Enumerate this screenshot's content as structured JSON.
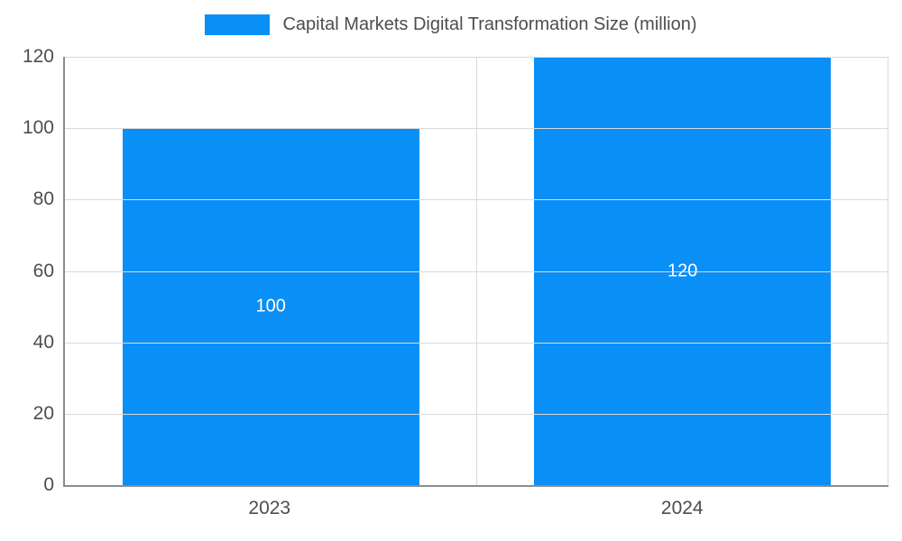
{
  "legend": {
    "title": "Capital Markets Digital Transformation Size (million)"
  },
  "chart_data": {
    "type": "bar",
    "title": "Capital Markets Digital Transformation Size (million)",
    "categories": [
      "2023",
      "2024"
    ],
    "values": [
      100,
      120
    ],
    "xlabel": "",
    "ylabel": "",
    "ylim": [
      0,
      120
    ],
    "yticks": [
      0,
      20,
      40,
      60,
      80,
      100,
      120
    ],
    "bar_color": "#0a8ff7",
    "value_label_color": "#ffffff",
    "grid": true,
    "legend_position": "top"
  }
}
